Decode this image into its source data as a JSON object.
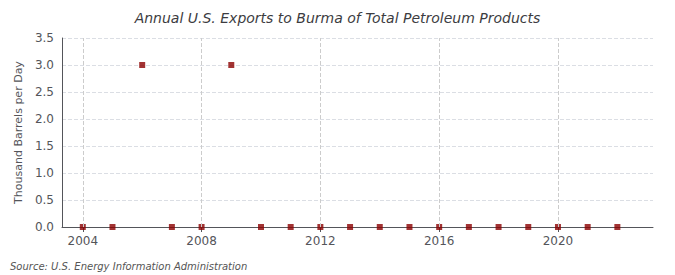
{
  "chart_data": {
    "type": "scatter",
    "title": "Annual U.S. Exports to Burma of Total Petroleum Products",
    "y_label": "Thousand Barrels per Day",
    "annotations": [
      "Source: U.S. Energy Information Administration"
    ],
    "x": [
      2004,
      2005,
      2006,
      2007,
      2008,
      2009,
      2010,
      2011,
      2012,
      2013,
      2014,
      2015,
      2016,
      2017,
      2018,
      2019,
      2020,
      2021,
      2022
    ],
    "values": [
      0.0,
      0.0,
      3.0,
      0.0,
      0.0,
      3.0,
      0.0,
      0.0,
      0.0,
      0.0,
      0.0,
      0.0,
      0.0,
      0.0,
      0.0,
      0.0,
      0.0,
      0.0,
      0.0
    ],
    "color": "#8b0000",
    "marker": "square",
    "ylim": [
      0,
      3.5
    ],
    "yticks": [
      {
        "value": 0,
        "label": "0.0"
      },
      0.5,
      {
        "value": 1,
        "label": "1.0"
      },
      1.5,
      {
        "value": 2,
        "label": "2.0"
      },
      2.5,
      {
        "value": 3,
        "label": "3.0"
      },
      3.5
    ],
    "xlim": [
      2003.3,
      2023.2
    ],
    "xticks": [
      2004,
      2008,
      2012,
      2016,
      2020
    ],
    "grid": true
  }
}
